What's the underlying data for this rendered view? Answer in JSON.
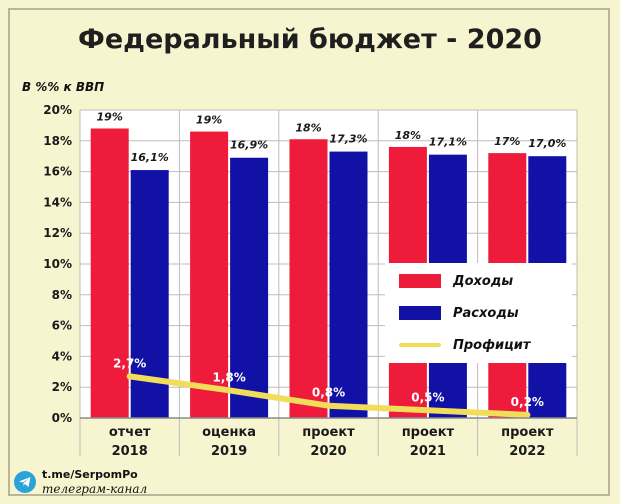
{
  "title": "Федеральный бюджет - 2020",
  "unit_label": "В %% к ВВП",
  "legend": {
    "income": "Доходы",
    "expense": "Расходы",
    "surplus": "Профицит"
  },
  "source": {
    "link": "t.me/SerpomPo",
    "subtitle": "телеграм-канал",
    "icon": "telegram-icon"
  },
  "colors": {
    "income": "#ee1b3a",
    "expense": "#1111a6",
    "surplus": "#f2dd5a",
    "grid": "#bdbdbd"
  },
  "chart_data": {
    "type": "bar",
    "categories": [
      [
        "отчет",
        "2018"
      ],
      [
        "оценка",
        "2019"
      ],
      [
        "проект",
        "2020"
      ],
      [
        "проект",
        "2021"
      ],
      [
        "проект",
        "2022"
      ]
    ],
    "ylim": [
      0,
      20
    ],
    "yticks": [
      0,
      2,
      4,
      6,
      8,
      10,
      12,
      14,
      16,
      18,
      20
    ],
    "ytick_labels": [
      "0%",
      "2%",
      "4%",
      "6%",
      "8%",
      "10%",
      "12%",
      "14%",
      "16%",
      "18%",
      "20%"
    ],
    "series": [
      {
        "name": "Доходы",
        "type": "bar",
        "values": [
          18.8,
          18.6,
          18.1,
          17.6,
          17.2
        ],
        "labels": [
          "19%",
          "19%",
          "18%",
          "18%",
          "17%"
        ]
      },
      {
        "name": "Расходы",
        "type": "bar",
        "values": [
          16.1,
          16.9,
          17.3,
          17.1,
          17.0
        ],
        "labels": [
          "16,1%",
          "16,9%",
          "17,3%",
          "17,1%",
          "17,0%"
        ]
      },
      {
        "name": "Профицит",
        "type": "line",
        "values": [
          2.7,
          1.8,
          0.8,
          0.5,
          0.2
        ],
        "labels": [
          "2,7%",
          "1,8%",
          "0,8%",
          "0,5%",
          "0,2%"
        ]
      }
    ],
    "legend_position": "right"
  }
}
